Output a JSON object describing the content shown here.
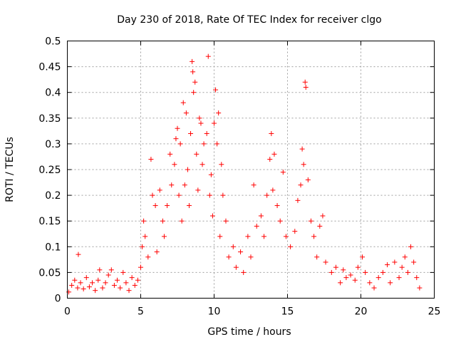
{
  "chart_data": {
    "type": "scatter",
    "title": "Day 230 of 2018, Rate Of TEC Index for receiver clgo",
    "xlabel": "GPS time / hours",
    "ylabel": "ROTI / TECUs",
    "xlim": [
      0,
      25
    ],
    "ylim": [
      0,
      0.5
    ],
    "x_ticks": [
      0,
      5,
      10,
      15,
      20,
      25
    ],
    "x_tick_labels": [
      "0",
      "5",
      "10",
      "15",
      "20",
      "25"
    ],
    "y_ticks": [
      0,
      0.05,
      0.1,
      0.15,
      0.2,
      0.25,
      0.3,
      0.35,
      0.4,
      0.45,
      0.5
    ],
    "y_tick_labels": [
      "0",
      "0.05",
      "0.1",
      "0.15",
      "0.2",
      "0.25",
      "0.3",
      "0.35",
      "0.4",
      "0.45",
      "0.5"
    ],
    "grid": true,
    "marker": "+",
    "color": "#ff0000",
    "series": [
      {
        "name": "ROTI",
        "points": [
          [
            0.1,
            0.012
          ],
          [
            0.3,
            0.025
          ],
          [
            0.5,
            0.035
          ],
          [
            0.7,
            0.02
          ],
          [
            0.75,
            0.085
          ],
          [
            0.9,
            0.03
          ],
          [
            1.1,
            0.018
          ],
          [
            1.3,
            0.04
          ],
          [
            1.5,
            0.022
          ],
          [
            1.7,
            0.03
          ],
          [
            1.9,
            0.015
          ],
          [
            2.1,
            0.035
          ],
          [
            2.2,
            0.055
          ],
          [
            2.4,
            0.02
          ],
          [
            2.6,
            0.03
          ],
          [
            2.8,
            0.045
          ],
          [
            3.0,
            0.055
          ],
          [
            3.2,
            0.025
          ],
          [
            3.4,
            0.035
          ],
          [
            3.6,
            0.02
          ],
          [
            3.8,
            0.05
          ],
          [
            4.0,
            0.03
          ],
          [
            4.2,
            0.015
          ],
          [
            4.4,
            0.04
          ],
          [
            4.6,
            0.025
          ],
          [
            4.8,
            0.035
          ],
          [
            5.0,
            0.06
          ],
          [
            5.1,
            0.1
          ],
          [
            5.2,
            0.15
          ],
          [
            5.3,
            0.12
          ],
          [
            5.5,
            0.08
          ],
          [
            5.7,
            0.27
          ],
          [
            5.8,
            0.2
          ],
          [
            6.0,
            0.18
          ],
          [
            6.1,
            0.09
          ],
          [
            6.3,
            0.21
          ],
          [
            6.5,
            0.15
          ],
          [
            6.6,
            0.12
          ],
          [
            6.8,
            0.18
          ],
          [
            7.0,
            0.28
          ],
          [
            7.1,
            0.22
          ],
          [
            7.3,
            0.26
          ],
          [
            7.4,
            0.31
          ],
          [
            7.5,
            0.33
          ],
          [
            7.6,
            0.2
          ],
          [
            7.7,
            0.3
          ],
          [
            7.8,
            0.15
          ],
          [
            7.9,
            0.38
          ],
          [
            8.0,
            0.22
          ],
          [
            8.1,
            0.36
          ],
          [
            8.2,
            0.25
          ],
          [
            8.3,
            0.18
          ],
          [
            8.4,
            0.32
          ],
          [
            8.5,
            0.46
          ],
          [
            8.55,
            0.44
          ],
          [
            8.6,
            0.4
          ],
          [
            8.7,
            0.42
          ],
          [
            8.8,
            0.28
          ],
          [
            8.9,
            0.21
          ],
          [
            9.0,
            0.35
          ],
          [
            9.1,
            0.34
          ],
          [
            9.2,
            0.26
          ],
          [
            9.3,
            0.3
          ],
          [
            9.5,
            0.32
          ],
          [
            9.6,
            0.47
          ],
          [
            9.7,
            0.2
          ],
          [
            9.8,
            0.24
          ],
          [
            9.9,
            0.16
          ],
          [
            10.0,
            0.34
          ],
          [
            10.1,
            0.405
          ],
          [
            10.2,
            0.3
          ],
          [
            10.3,
            0.36
          ],
          [
            10.4,
            0.12
          ],
          [
            10.5,
            0.26
          ],
          [
            10.6,
            0.2
          ],
          [
            10.8,
            0.15
          ],
          [
            11.0,
            0.08
          ],
          [
            11.3,
            0.1
          ],
          [
            11.5,
            0.06
          ],
          [
            11.8,
            0.09
          ],
          [
            12.0,
            0.05
          ],
          [
            12.3,
            0.12
          ],
          [
            12.5,
            0.08
          ],
          [
            12.7,
            0.22
          ],
          [
            12.9,
            0.14
          ],
          [
            13.2,
            0.16
          ],
          [
            13.4,
            0.12
          ],
          [
            13.6,
            0.2
          ],
          [
            13.8,
            0.27
          ],
          [
            13.9,
            0.32
          ],
          [
            14.0,
            0.21
          ],
          [
            14.1,
            0.28
          ],
          [
            14.3,
            0.18
          ],
          [
            14.5,
            0.15
          ],
          [
            14.7,
            0.245
          ],
          [
            14.9,
            0.12
          ],
          [
            15.2,
            0.1
          ],
          [
            15.5,
            0.13
          ],
          [
            15.7,
            0.19
          ],
          [
            15.9,
            0.22
          ],
          [
            16.0,
            0.29
          ],
          [
            16.1,
            0.26
          ],
          [
            16.2,
            0.42
          ],
          [
            16.25,
            0.41
          ],
          [
            16.4,
            0.23
          ],
          [
            16.6,
            0.15
          ],
          [
            16.8,
            0.12
          ],
          [
            17.0,
            0.08
          ],
          [
            17.2,
            0.14
          ],
          [
            17.4,
            0.16
          ],
          [
            17.6,
            0.07
          ],
          [
            18.0,
            0.05
          ],
          [
            18.3,
            0.06
          ],
          [
            18.6,
            0.03
          ],
          [
            18.8,
            0.055
          ],
          [
            19.0,
            0.04
          ],
          [
            19.3,
            0.045
          ],
          [
            19.6,
            0.035
          ],
          [
            19.8,
            0.06
          ],
          [
            20.1,
            0.08
          ],
          [
            20.3,
            0.05
          ],
          [
            20.6,
            0.03
          ],
          [
            20.9,
            0.02
          ],
          [
            21.2,
            0.04
          ],
          [
            21.5,
            0.05
          ],
          [
            21.8,
            0.065
          ],
          [
            22.0,
            0.03
          ],
          [
            22.3,
            0.07
          ],
          [
            22.6,
            0.04
          ],
          [
            22.8,
            0.06
          ],
          [
            23.0,
            0.08
          ],
          [
            23.2,
            0.05
          ],
          [
            23.4,
            0.1
          ],
          [
            23.6,
            0.07
          ],
          [
            23.8,
            0.04
          ],
          [
            24.0,
            0.02
          ]
        ]
      }
    ]
  }
}
